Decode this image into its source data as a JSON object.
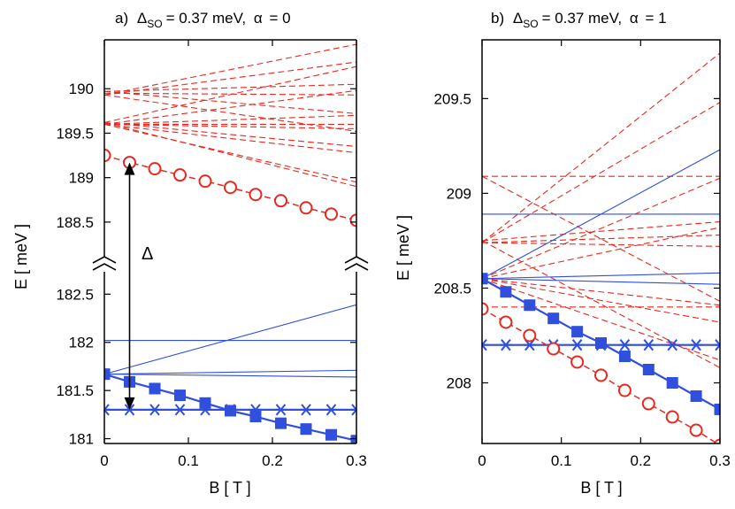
{
  "colors": {
    "red": "#e8281e",
    "blue": "#2f4fdc",
    "axis": "#000000",
    "arrow": "#000000"
  },
  "icons": {
    "broken_axis": "double-chevron-break-mark",
    "open_circle": "open-circle-marker",
    "filled_square": "filled-square-marker",
    "asterisk": "asterisk-marker"
  },
  "chart_data": [
    {
      "type": "line",
      "panel": "a",
      "title": {
        "prefix": "a)",
        "delta": "Δ",
        "so_sub": "SO",
        "eq_value": "= 0.37 meV,",
        "alpha": "α",
        "alpha_value": "= 0"
      },
      "xlabel": "B [ T ]",
      "ylabel": "E [ meV ]",
      "xlim": [
        0,
        0.3
      ],
      "xticks": [
        {
          "v": 0,
          "label": "0"
        },
        {
          "v": 0.1,
          "label": "0.1"
        },
        {
          "v": 0.2,
          "label": "0.2"
        },
        {
          "v": 0.3,
          "label": "0.3"
        }
      ],
      "broken_axis": true,
      "upper_ylim": [
        188.2,
        190.55
      ],
      "lower_ylim": [
        180.95,
        182.65
      ],
      "upper_yticks": [
        {
          "v": 188.5,
          "label": "188.5"
        },
        {
          "v": 189,
          "label": "189"
        },
        {
          "v": 189.5,
          "label": "189.5"
        },
        {
          "v": 190,
          "label": "190"
        }
      ],
      "lower_yticks": [
        {
          "v": 181,
          "label": "181"
        },
        {
          "v": 181.5,
          "label": "181.5"
        },
        {
          "v": 182,
          "label": "182"
        },
        {
          "v": 182.5,
          "label": "182.5"
        }
      ],
      "annotation": {
        "text": "Δ",
        "x": 0.03,
        "from": 181.3,
        "to": 189.17
      },
      "upper_dashed_lines": [
        [
          189.93,
          190.5
        ],
        [
          189.93,
          190.3
        ],
        [
          189.97,
          190.05
        ],
        [
          189.95,
          189.93
        ],
        [
          189.97,
          189.72
        ],
        [
          189.93,
          189.52
        ],
        [
          189.62,
          190.25
        ],
        [
          189.6,
          189.98
        ],
        [
          189.6,
          189.7
        ],
        [
          189.6,
          189.6
        ],
        [
          189.6,
          189.55
        ],
        [
          189.62,
          189.35
        ],
        [
          189.6,
          189.28
        ],
        [
          189.6,
          188.95
        ],
        [
          189.62,
          188.9
        ]
      ],
      "upper_marked": {
        "x": [
          0,
          0.03,
          0.06,
          0.09,
          0.12,
          0.15,
          0.18,
          0.21,
          0.24,
          0.27,
          0.3
        ],
        "values": [
          189.25,
          189.17,
          189.1,
          189.03,
          188.96,
          188.89,
          188.81,
          188.74,
          188.66,
          188.59,
          188.52
        ]
      },
      "lower_solid_lines": [
        [
          182.02,
          182.02
        ],
        [
          181.67,
          182.39
        ],
        [
          181.67,
          181.71
        ],
        [
          181.67,
          181.64
        ]
      ],
      "lower_squares": {
        "x": [
          0,
          0.03,
          0.06,
          0.09,
          0.12,
          0.15,
          0.18,
          0.21,
          0.24,
          0.27,
          0.3
        ],
        "values": [
          181.67,
          181.59,
          181.52,
          181.45,
          181.37,
          181.29,
          181.23,
          181.16,
          181.1,
          181.04,
          180.98
        ]
      },
      "lower_stars": {
        "x": [
          0,
          0.03,
          0.06,
          0.09,
          0.12,
          0.15,
          0.18,
          0.21,
          0.24,
          0.27,
          0.3
        ],
        "values": [
          181.3,
          181.3,
          181.3,
          181.3,
          181.3,
          181.3,
          181.3,
          181.3,
          181.3,
          181.3,
          181.3
        ]
      }
    },
    {
      "type": "line",
      "panel": "b",
      "title": {
        "prefix": "b)",
        "delta": "Δ",
        "so_sub": "SO",
        "eq_value": "= 0.37 meV,",
        "alpha": "α",
        "alpha_value": "= 1"
      },
      "xlabel": "B [ T ]",
      "ylabel": "E [ meV ]",
      "xlim": [
        0,
        0.3
      ],
      "ylim": [
        207.68,
        209.81
      ],
      "xticks": [
        {
          "v": 0,
          "label": "0"
        },
        {
          "v": 0.1,
          "label": "0.1"
        },
        {
          "v": 0.2,
          "label": "0.2"
        },
        {
          "v": 0.3,
          "label": "0.3"
        }
      ],
      "yticks": [
        {
          "v": 208,
          "label": "208"
        },
        {
          "v": 208.5,
          "label": "208.5"
        },
        {
          "v": 209,
          "label": "209"
        },
        {
          "v": 209.5,
          "label": "209.5"
        }
      ],
      "dashed_lines": [
        [
          209.09,
          209.09
        ],
        [
          209.09,
          208.43
        ],
        [
          208.74,
          209.74
        ],
        [
          208.74,
          209.48
        ],
        [
          208.75,
          208.85
        ],
        [
          208.74,
          208.78
        ],
        [
          208.74,
          208.72
        ],
        [
          208.75,
          208.08
        ],
        [
          208.55,
          208.41
        ],
        [
          208.55,
          208.32
        ],
        [
          208.55,
          208.12
        ],
        [
          208.4,
          208.4
        ],
        [
          208.55,
          209.08
        ],
        [
          208.55,
          208.82
        ]
      ],
      "solid_lines": [
        [
          208.89,
          208.89
        ],
        [
          208.55,
          209.23
        ],
        [
          208.55,
          208.58
        ],
        [
          208.55,
          208.52
        ]
      ],
      "circles": {
        "x": [
          0,
          0.03,
          0.06,
          0.09,
          0.12,
          0.15,
          0.18,
          0.21,
          0.24,
          0.27,
          0.3
        ],
        "values": [
          208.39,
          208.32,
          208.25,
          208.18,
          208.11,
          208.04,
          207.96,
          207.89,
          207.82,
          207.75,
          207.67
        ]
      },
      "squares": {
        "x": [
          0,
          0.03,
          0.06,
          0.09,
          0.12,
          0.15,
          0.18,
          0.21,
          0.24,
          0.27,
          0.3
        ],
        "values": [
          208.55,
          208.48,
          208.41,
          208.34,
          208.27,
          208.21,
          208.14,
          208.07,
          208.0,
          207.93,
          207.86
        ]
      },
      "stars": {
        "x": [
          0,
          0.03,
          0.06,
          0.09,
          0.12,
          0.15,
          0.18,
          0.21,
          0.24,
          0.27,
          0.3
        ],
        "values": [
          208.2,
          208.2,
          208.2,
          208.2,
          208.2,
          208.2,
          208.2,
          208.2,
          208.2,
          208.2,
          208.2
        ]
      }
    }
  ]
}
